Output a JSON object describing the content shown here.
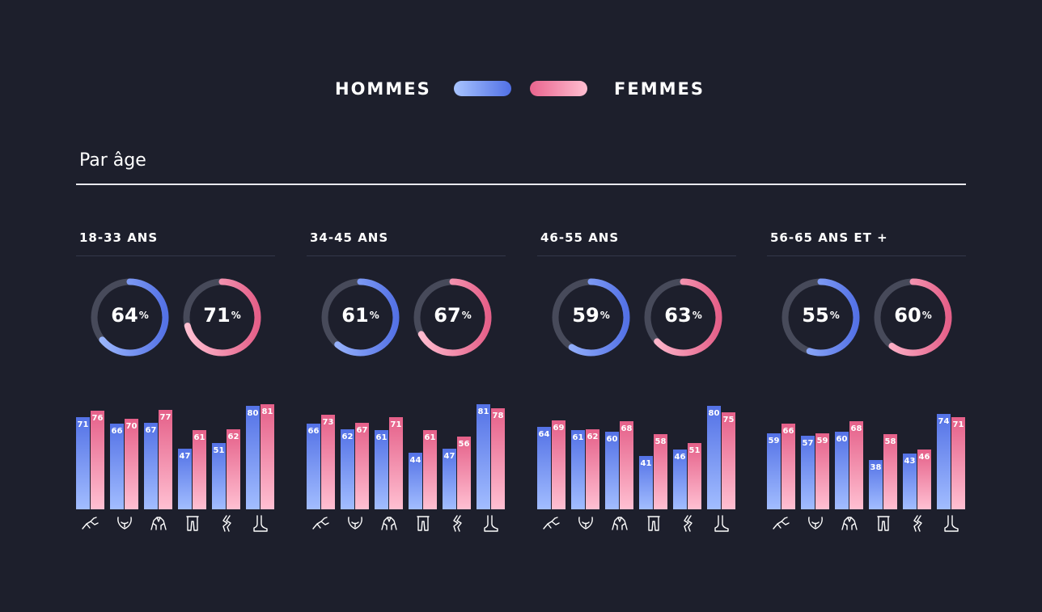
{
  "legend": {
    "men": "HOMMES",
    "women": "FEMMES"
  },
  "section_title": "Par âge",
  "colors": {
    "background": "#1d1f2c",
    "men_top": "#5472e6",
    "men_bottom": "#a2bdff",
    "women_top": "#e56089",
    "women_bottom": "#ffc0d2",
    "track": "#474a5a"
  },
  "body_parts": [
    "shoulder-icon",
    "chest-icon",
    "back-icon",
    "legs-icon",
    "knee-icon",
    "foot-icon"
  ],
  "chart_data": {
    "type": "bar",
    "title": "Par âge",
    "series_names": [
      "HOMMES",
      "FEMMES"
    ],
    "percent_unit": "%",
    "ylim": [
      0,
      100
    ],
    "groups": [
      {
        "label": "18-33 ANS",
        "donut": {
          "men": 64,
          "women": 71
        },
        "bars": {
          "men": [
            71,
            66,
            67,
            47,
            51,
            80
          ],
          "women": [
            76,
            70,
            77,
            61,
            62,
            81
          ]
        }
      },
      {
        "label": "34-45 ANS",
        "donut": {
          "men": 61,
          "women": 67
        },
        "bars": {
          "men": [
            66,
            62,
            61,
            44,
            47,
            81
          ],
          "women": [
            73,
            67,
            71,
            61,
            56,
            78
          ]
        }
      },
      {
        "label": "46-55 ANS",
        "donut": {
          "men": 59,
          "women": 63
        },
        "bars": {
          "men": [
            64,
            61,
            60,
            41,
            46,
            80
          ],
          "women": [
            69,
            62,
            68,
            58,
            51,
            75
          ]
        }
      },
      {
        "label": "56-65 ANS ET +",
        "donut": {
          "men": 55,
          "women": 60
        },
        "bars": {
          "men": [
            59,
            57,
            60,
            38,
            43,
            74
          ],
          "women": [
            66,
            59,
            68,
            58,
            46,
            71
          ]
        }
      }
    ]
  }
}
